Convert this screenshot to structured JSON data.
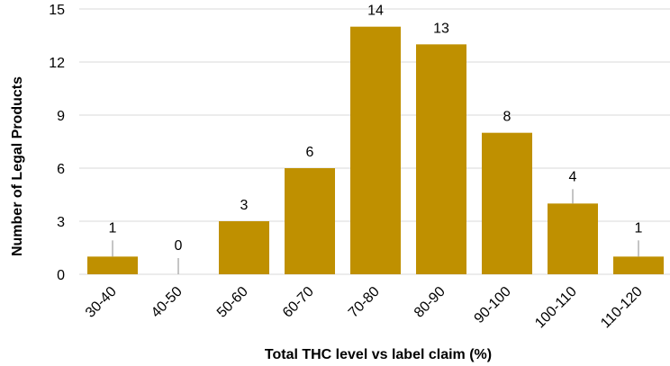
{
  "chart_data": {
    "type": "bar",
    "categories": [
      "30-40",
      "40-50",
      "50-60",
      "60-70",
      "70-80",
      "80-90",
      "90-100",
      "100-110",
      "110-120"
    ],
    "values": [
      1,
      0,
      3,
      6,
      14,
      13,
      8,
      4,
      1
    ],
    "xlabel": "Total THC level vs label claim (%)",
    "ylabel": "Number of Legal Products",
    "ylim": [
      0,
      15
    ],
    "yticks": [
      0,
      3,
      6,
      9,
      12,
      15
    ],
    "grid": true,
    "bar_color": "#bf9000",
    "leader_color": "#a6a6a6",
    "grid_color": "#d9d9d9"
  }
}
